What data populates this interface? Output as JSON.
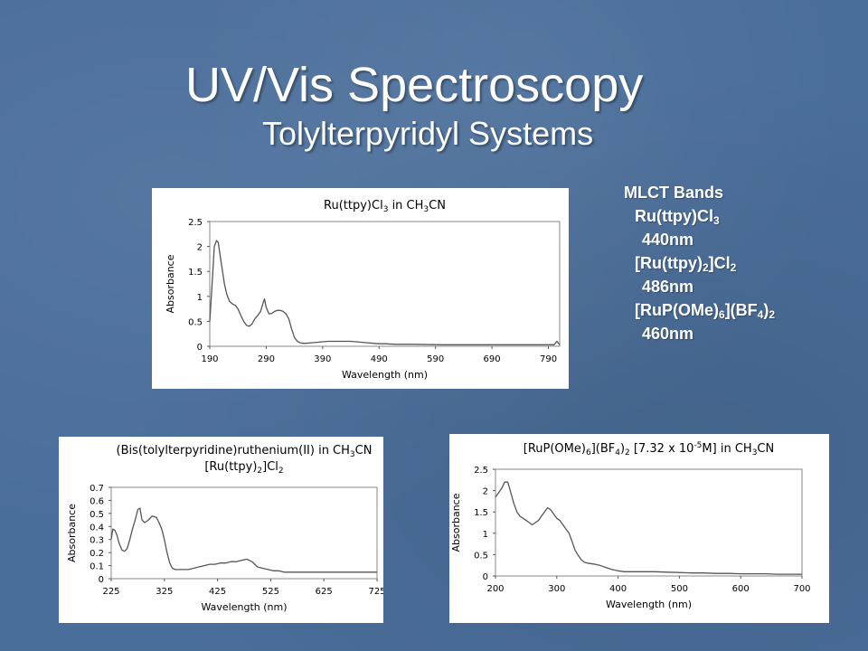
{
  "slide": {
    "title": "UV/Vis Spectroscopy",
    "subtitle": "Tolylterpyridyl Systems"
  },
  "mlct": {
    "heading": "MLCT Bands",
    "entries": [
      {
        "compound_parts": [
          "Ru(ttpy)Cl",
          "3"
        ],
        "wavelength": "440nm"
      },
      {
        "compound_parts": [
          "[Ru(ttpy)",
          "2",
          "]Cl",
          "2"
        ],
        "wavelength": "486nm"
      },
      {
        "compound_parts": [
          "[RuP(OMe)",
          "6",
          "](BF",
          "4",
          ")",
          "2"
        ],
        "wavelength": "460nm"
      }
    ]
  },
  "chart_data": [
    {
      "type": "line",
      "title_parts": [
        "Ru(ttpy)Cl",
        "3",
        " in CH",
        "3",
        "CN"
      ],
      "xlabel": "Wavelength (nm)",
      "ylabel": "Absorbance",
      "xlim": [
        190,
        810
      ],
      "ylim": [
        0,
        2.5
      ],
      "xticks": [
        "190",
        "290",
        "390",
        "490",
        "590",
        "690",
        "790"
      ],
      "yticks": [
        "0",
        "0.5",
        "1",
        "1.5",
        "2",
        "2.5"
      ],
      "series": [
        {
          "x": [
            190,
            195,
            198,
            202,
            205,
            208,
            212,
            216,
            220,
            225,
            230,
            235,
            240,
            245,
            250,
            255,
            260,
            265,
            270,
            275,
            280,
            284,
            287,
            290,
            295,
            300,
            305,
            310,
            315,
            320,
            325,
            330,
            335,
            340,
            345,
            350,
            355,
            360,
            370,
            380,
            390,
            400,
            410,
            420,
            430,
            440,
            450,
            460,
            470,
            480,
            490,
            500,
            520,
            550,
            600,
            650,
            700,
            750,
            800,
            805,
            810
          ],
          "y": [
            0.5,
            1.4,
            2.0,
            2.12,
            2.08,
            1.85,
            1.55,
            1.25,
            1.05,
            0.9,
            0.85,
            0.82,
            0.75,
            0.62,
            0.5,
            0.42,
            0.4,
            0.45,
            0.55,
            0.62,
            0.7,
            0.85,
            0.95,
            0.78,
            0.65,
            0.66,
            0.7,
            0.72,
            0.72,
            0.7,
            0.65,
            0.55,
            0.35,
            0.18,
            0.1,
            0.07,
            0.06,
            0.06,
            0.07,
            0.08,
            0.09,
            0.1,
            0.1,
            0.1,
            0.1,
            0.1,
            0.09,
            0.08,
            0.07,
            0.06,
            0.05,
            0.05,
            0.04,
            0.04,
            0.03,
            0.03,
            0.03,
            0.03,
            0.03,
            0.1,
            0.03
          ]
        }
      ]
    },
    {
      "type": "line",
      "title_parts": [
        "(Bis(tolylterpyridine)ruthenium(II) in CH",
        "3",
        "CN"
      ],
      "subtitle_parts": [
        "[Ru(ttpy)",
        "2",
        "]Cl",
        "2"
      ],
      "xlabel": "Wavelength (nm)",
      "ylabel": "Absorbance",
      "xlim": [
        225,
        725
      ],
      "ylim": [
        0,
        0.7
      ],
      "xticks": [
        "225",
        "325",
        "425",
        "525",
        "625",
        "725"
      ],
      "yticks": [
        "0",
        "0.1",
        "0.2",
        "0.3",
        "0.4",
        "0.5",
        "0.6",
        "0.7"
      ],
      "series": [
        {
          "x": [
            225,
            228,
            232,
            236,
            240,
            245,
            250,
            255,
            260,
            265,
            270,
            275,
            279,
            283,
            288,
            295,
            302,
            310,
            315,
            320,
            325,
            330,
            335,
            340,
            345,
            350,
            355,
            360,
            370,
            380,
            390,
            400,
            410,
            420,
            430,
            440,
            450,
            460,
            470,
            480,
            485,
            490,
            495,
            500,
            510,
            520,
            530,
            540,
            550,
            575,
            600,
            650,
            700,
            725
          ],
          "y": [
            0.3,
            0.38,
            0.37,
            0.33,
            0.27,
            0.22,
            0.21,
            0.23,
            0.3,
            0.38,
            0.45,
            0.53,
            0.54,
            0.45,
            0.43,
            0.45,
            0.48,
            0.47,
            0.43,
            0.38,
            0.3,
            0.2,
            0.12,
            0.08,
            0.07,
            0.07,
            0.07,
            0.07,
            0.07,
            0.08,
            0.09,
            0.1,
            0.11,
            0.11,
            0.12,
            0.12,
            0.13,
            0.13,
            0.14,
            0.15,
            0.14,
            0.13,
            0.11,
            0.09,
            0.08,
            0.07,
            0.06,
            0.06,
            0.05,
            0.05,
            0.05,
            0.05,
            0.05,
            0.05
          ]
        }
      ]
    },
    {
      "type": "line",
      "title_parts": [
        "[RuP(OMe)",
        "6",
        "](BF",
        "4",
        ")",
        "2",
        " [7.32 x 10",
        "-5",
        "M] in CH",
        "3",
        "CN"
      ],
      "xlabel": "Wavelength (nm)",
      "ylabel": "Absorbance",
      "xlim": [
        200,
        700
      ],
      "ylim": [
        0,
        2.5
      ],
      "xticks": [
        "200",
        "300",
        "400",
        "500",
        "600",
        "700"
      ],
      "yticks": [
        "0",
        "0.5",
        "1",
        "1.5",
        "2",
        "2.5"
      ],
      "series": [
        {
          "x": [
            200,
            205,
            210,
            215,
            220,
            225,
            230,
            235,
            240,
            245,
            250,
            255,
            260,
            265,
            270,
            275,
            280,
            285,
            290,
            295,
            300,
            305,
            310,
            315,
            320,
            325,
            330,
            335,
            340,
            345,
            350,
            360,
            370,
            380,
            390,
            400,
            410,
            420,
            440,
            460,
            480,
            500,
            520,
            540,
            560,
            580,
            600,
            620,
            640,
            660,
            680,
            700
          ],
          "y": [
            1.85,
            1.95,
            2.05,
            2.2,
            2.2,
            1.95,
            1.7,
            1.5,
            1.4,
            1.35,
            1.3,
            1.25,
            1.2,
            1.25,
            1.3,
            1.4,
            1.5,
            1.6,
            1.55,
            1.45,
            1.35,
            1.3,
            1.2,
            1.1,
            1.0,
            0.8,
            0.6,
            0.48,
            0.38,
            0.32,
            0.3,
            0.28,
            0.25,
            0.2,
            0.15,
            0.12,
            0.1,
            0.1,
            0.1,
            0.1,
            0.09,
            0.08,
            0.07,
            0.07,
            0.06,
            0.06,
            0.05,
            0.05,
            0.05,
            0.04,
            0.04,
            0.04
          ]
        }
      ]
    }
  ]
}
